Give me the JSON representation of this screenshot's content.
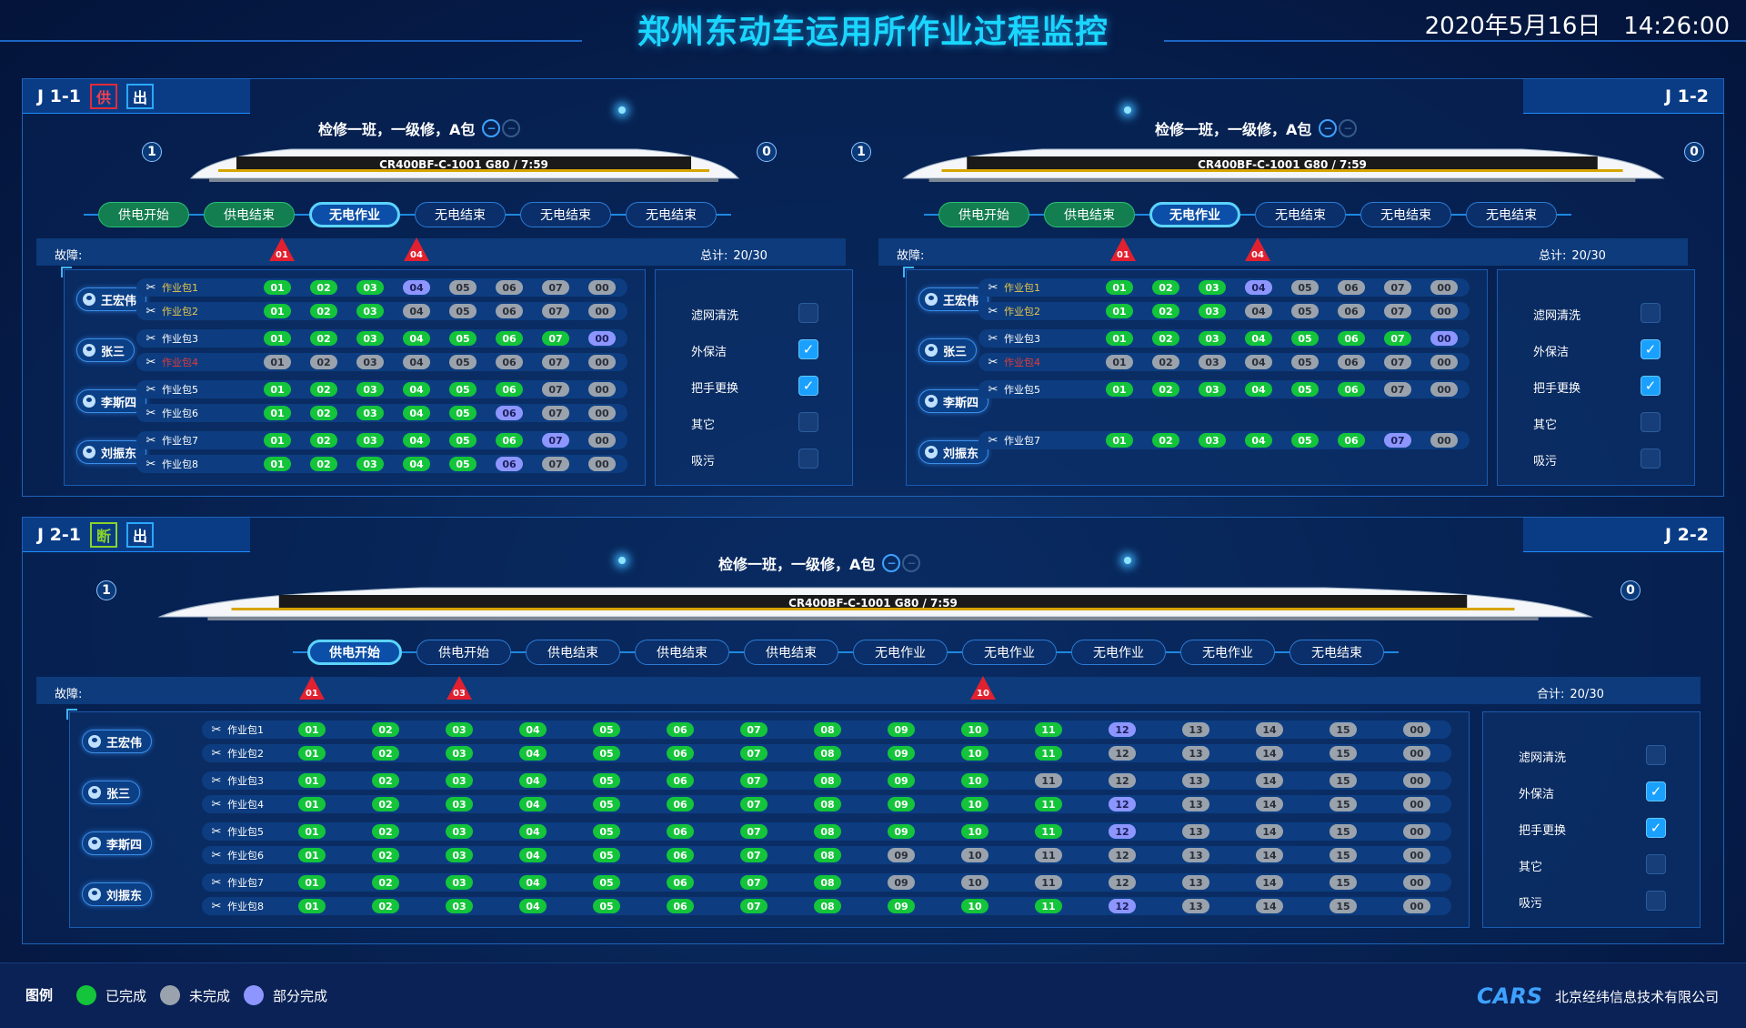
{
  "header": {
    "title": "郑州东动车运用所作业过程监控",
    "datetime": "2020年5月16日   14:26:00"
  },
  "legend": {
    "title": "图例",
    "done": "已完成",
    "undone": "未完成",
    "partial": "部分完成",
    "colors": {
      "done": "#14c43a",
      "undone": "#9aa3ad",
      "partial": "#8d96ff"
    }
  },
  "company": {
    "logo": "CARS",
    "name": "北京经纬信息技术有限公司"
  },
  "panels": {
    "j11": {
      "label": "J 1-1",
      "badge1": "供",
      "badge2": "出"
    },
    "j12": {
      "label": "J 1-2"
    },
    "j21": {
      "label": "J 2-1",
      "badge1": "断",
      "badge2": "出"
    },
    "j22": {
      "label": "J 2-2"
    }
  },
  "sections": [
    {
      "id": "s1",
      "subtitle": "检修一班，一级修，A包",
      "num_left": "1",
      "num_right": "0",
      "train_text": "CR400BF-C-1001  G80 / 7:59",
      "stages": [
        {
          "label": "供电开始",
          "state": "done"
        },
        {
          "label": "供电结束",
          "state": "done"
        },
        {
          "label": "无电作业",
          "state": "current"
        },
        {
          "label": "无电结束",
          "state": "todo"
        },
        {
          "label": "无电结束",
          "state": "todo"
        },
        {
          "label": "无电结束",
          "state": "todo"
        }
      ],
      "fault_label": "故障:",
      "faults": [
        "01",
        "04"
      ],
      "total_label": "总计:",
      "total": "20/30",
      "workers": [
        "王宏伟",
        "张三",
        "李斯四",
        "刘振东"
      ],
      "packages": [
        {
          "name": "作业包1",
          "style": "warn",
          "steps": [
            "01",
            "02",
            "03",
            "04",
            "05",
            "06",
            "07",
            "00"
          ],
          "states": [
            "g",
            "g",
            "g",
            "p",
            "n",
            "n",
            "n",
            "n"
          ]
        },
        {
          "name": "作业包2",
          "style": "warn",
          "steps": [
            "01",
            "02",
            "03",
            "04",
            "05",
            "06",
            "07",
            "00"
          ],
          "states": [
            "g",
            "g",
            "g",
            "n",
            "n",
            "n",
            "n",
            "n"
          ]
        },
        {
          "name": "作业包3",
          "style": "normal",
          "steps": [
            "01",
            "02",
            "03",
            "04",
            "05",
            "06",
            "07",
            "00"
          ],
          "states": [
            "g",
            "g",
            "g",
            "g",
            "g",
            "g",
            "g",
            "p"
          ]
        },
        {
          "name": "作业包4",
          "style": "err",
          "steps": [
            "01",
            "02",
            "03",
            "04",
            "05",
            "06",
            "07",
            "00"
          ],
          "states": [
            "n",
            "n",
            "n",
            "n",
            "n",
            "n",
            "n",
            "n"
          ]
        },
        {
          "name": "作业包5",
          "style": "normal",
          "steps": [
            "01",
            "02",
            "03",
            "04",
            "05",
            "06",
            "07",
            "00"
          ],
          "states": [
            "g",
            "g",
            "g",
            "g",
            "g",
            "g",
            "n",
            "n"
          ]
        },
        {
          "name": "作业包6",
          "style": "normal",
          "steps": [
            "01",
            "02",
            "03",
            "04",
            "05",
            "06",
            "07",
            "00"
          ],
          "states": [
            "g",
            "g",
            "g",
            "g",
            "g",
            "p",
            "n",
            "n"
          ]
        },
        {
          "name": "作业包7",
          "style": "normal",
          "steps": [
            "01",
            "02",
            "03",
            "04",
            "05",
            "06",
            "07",
            "00"
          ],
          "states": [
            "g",
            "g",
            "g",
            "g",
            "g",
            "g",
            "p",
            "n"
          ]
        },
        {
          "name": "作业包8",
          "style": "normal",
          "steps": [
            "01",
            "02",
            "03",
            "04",
            "05",
            "06",
            "07",
            "00"
          ],
          "states": [
            "g",
            "g",
            "g",
            "g",
            "g",
            "p",
            "n",
            "n"
          ]
        }
      ],
      "checks": [
        {
          "label": "滤网清洗",
          "checked": false
        },
        {
          "label": "外保洁",
          "checked": true
        },
        {
          "label": "把手更换",
          "checked": true
        },
        {
          "label": "其它",
          "checked": false
        },
        {
          "label": "吸污",
          "checked": false
        }
      ]
    },
    {
      "id": "s2",
      "subtitle": "检修一班，一级修，A包",
      "num_left": "1",
      "num_right": "0",
      "train_text": "CR400BF-C-1001  G80 / 7:59",
      "stages": [
        {
          "label": "供电开始",
          "state": "done"
        },
        {
          "label": "供电结束",
          "state": "done"
        },
        {
          "label": "无电作业",
          "state": "current"
        },
        {
          "label": "无电结束",
          "state": "todo"
        },
        {
          "label": "无电结束",
          "state": "todo"
        },
        {
          "label": "无电结束",
          "state": "todo"
        }
      ],
      "fault_label": "故障:",
      "faults": [
        "01",
        "04"
      ],
      "total_label": "总计:",
      "total": "20/30",
      "workers": [
        "王宏伟",
        "张三",
        "李斯四",
        "刘振东"
      ],
      "packages": [
        {
          "name": "作业包1",
          "style": "warn",
          "steps": [
            "01",
            "02",
            "03",
            "04",
            "05",
            "06",
            "07",
            "00"
          ],
          "states": [
            "g",
            "g",
            "g",
            "p",
            "n",
            "n",
            "n",
            "n"
          ]
        },
        {
          "name": "作业包2",
          "style": "warn",
          "steps": [
            "01",
            "02",
            "03",
            "04",
            "05",
            "06",
            "07",
            "00"
          ],
          "states": [
            "g",
            "g",
            "g",
            "n",
            "n",
            "n",
            "n",
            "n"
          ]
        },
        {
          "name": "作业包3",
          "style": "normal",
          "steps": [
            "01",
            "02",
            "03",
            "04",
            "05",
            "06",
            "07",
            "00"
          ],
          "states": [
            "g",
            "g",
            "g",
            "g",
            "g",
            "g",
            "g",
            "p"
          ]
        },
        {
          "name": "作业包4",
          "style": "err",
          "steps": [
            "01",
            "02",
            "03",
            "04",
            "05",
            "06",
            "07",
            "00"
          ],
          "states": [
            "n",
            "n",
            "n",
            "n",
            "n",
            "n",
            "n",
            "n"
          ]
        },
        {
          "name": "作业包5",
          "style": "normal",
          "steps": [
            "01",
            "02",
            "03",
            "04",
            "05",
            "06",
            "07",
            "00"
          ],
          "states": [
            "g",
            "g",
            "g",
            "g",
            "g",
            "g",
            "n",
            "n"
          ]
        },
        {
          "name": "作业包7",
          "style": "normal",
          "steps": [
            "01",
            "02",
            "03",
            "04",
            "05",
            "06",
            "07",
            "00"
          ],
          "states": [
            "g",
            "g",
            "g",
            "g",
            "g",
            "g",
            "p",
            "n"
          ]
        }
      ],
      "checks": [
        {
          "label": "滤网清洗",
          "checked": false
        },
        {
          "label": "外保洁",
          "checked": true
        },
        {
          "label": "把手更换",
          "checked": true
        },
        {
          "label": "其它",
          "checked": false
        },
        {
          "label": "吸污",
          "checked": false
        }
      ]
    },
    {
      "id": "s3",
      "subtitle": "检修一班，一级修，A包",
      "num_left": "1",
      "num_right": "0",
      "train_text": "CR400BF-C-1001  G80 / 7:59",
      "stages": [
        {
          "label": "供电开始",
          "state": "current"
        },
        {
          "label": "供电开始",
          "state": "todo"
        },
        {
          "label": "供电结束",
          "state": "todo"
        },
        {
          "label": "供电结束",
          "state": "todo"
        },
        {
          "label": "供电结束",
          "state": "todo"
        },
        {
          "label": "无电作业",
          "state": "todo"
        },
        {
          "label": "无电作业",
          "state": "todo"
        },
        {
          "label": "无电作业",
          "state": "todo"
        },
        {
          "label": "无电作业",
          "state": "todo"
        },
        {
          "label": "无电结束",
          "state": "todo"
        }
      ],
      "fault_label": "故障:",
      "faults": [
        "01",
        "03",
        "10"
      ],
      "total_label": "合计:",
      "total": "20/30",
      "workers": [
        "王宏伟",
        "张三",
        "李斯四",
        "刘振东"
      ],
      "packages": [
        {
          "name": "作业包1",
          "style": "normal",
          "steps": [
            "01",
            "02",
            "03",
            "04",
            "05",
            "06",
            "07",
            "08",
            "09",
            "10",
            "11",
            "12",
            "13",
            "14",
            "15",
            "00"
          ],
          "states": [
            "g",
            "g",
            "g",
            "g",
            "g",
            "g",
            "g",
            "g",
            "g",
            "g",
            "g",
            "p",
            "n",
            "n",
            "n",
            "n"
          ]
        },
        {
          "name": "作业包2",
          "style": "normal",
          "steps": [
            "01",
            "02",
            "03",
            "04",
            "05",
            "06",
            "07",
            "08",
            "09",
            "10",
            "11",
            "12",
            "13",
            "14",
            "15",
            "00"
          ],
          "states": [
            "g",
            "g",
            "g",
            "g",
            "g",
            "g",
            "g",
            "g",
            "g",
            "g",
            "g",
            "n",
            "n",
            "n",
            "n",
            "n"
          ]
        },
        {
          "name": "作业包3",
          "style": "normal",
          "steps": [
            "01",
            "02",
            "03",
            "04",
            "05",
            "06",
            "07",
            "08",
            "09",
            "10",
            "11",
            "12",
            "13",
            "14",
            "15",
            "00"
          ],
          "states": [
            "g",
            "g",
            "g",
            "g",
            "g",
            "g",
            "g",
            "g",
            "g",
            "g",
            "n",
            "n",
            "n",
            "n",
            "n",
            "n"
          ]
        },
        {
          "name": "作业包4",
          "style": "normal",
          "steps": [
            "01",
            "02",
            "03",
            "04",
            "05",
            "06",
            "07",
            "08",
            "09",
            "10",
            "11",
            "12",
            "13",
            "14",
            "15",
            "00"
          ],
          "states": [
            "g",
            "g",
            "g",
            "g",
            "g",
            "g",
            "g",
            "g",
            "g",
            "g",
            "g",
            "p",
            "n",
            "n",
            "n",
            "n"
          ]
        },
        {
          "name": "作业包5",
          "style": "normal",
          "steps": [
            "01",
            "02",
            "03",
            "04",
            "05",
            "06",
            "07",
            "08",
            "09",
            "10",
            "11",
            "12",
            "13",
            "14",
            "15",
            "00"
          ],
          "states": [
            "g",
            "g",
            "g",
            "g",
            "g",
            "g",
            "g",
            "g",
            "g",
            "g",
            "g",
            "p",
            "n",
            "n",
            "n",
            "n"
          ]
        },
        {
          "name": "作业包6",
          "style": "normal",
          "steps": [
            "01",
            "02",
            "03",
            "04",
            "05",
            "06",
            "07",
            "08",
            "09",
            "10",
            "11",
            "12",
            "13",
            "14",
            "15",
            "00"
          ],
          "states": [
            "g",
            "g",
            "g",
            "g",
            "g",
            "g",
            "g",
            "g",
            "n",
            "n",
            "n",
            "n",
            "n",
            "n",
            "n",
            "n"
          ]
        },
        {
          "name": "作业包7",
          "style": "normal",
          "steps": [
            "01",
            "02",
            "03",
            "04",
            "05",
            "06",
            "07",
            "08",
            "09",
            "10",
            "11",
            "12",
            "13",
            "14",
            "15",
            "00"
          ],
          "states": [
            "g",
            "g",
            "g",
            "g",
            "g",
            "g",
            "g",
            "g",
            "n",
            "n",
            "n",
            "n",
            "n",
            "n",
            "n",
            "n"
          ]
        },
        {
          "name": "作业包8",
          "style": "normal",
          "steps": [
            "01",
            "02",
            "03",
            "04",
            "05",
            "06",
            "07",
            "08",
            "09",
            "10",
            "11",
            "12",
            "13",
            "14",
            "15",
            "00"
          ],
          "states": [
            "g",
            "g",
            "g",
            "g",
            "g",
            "g",
            "g",
            "g",
            "g",
            "g",
            "g",
            "p",
            "n",
            "n",
            "n",
            "n"
          ]
        }
      ],
      "checks": [
        {
          "label": "滤网清洗",
          "checked": false
        },
        {
          "label": "外保洁",
          "checked": true
        },
        {
          "label": "把手更换",
          "checked": true
        },
        {
          "label": "其它",
          "checked": false
        },
        {
          "label": "吸污",
          "checked": false
        }
      ]
    }
  ]
}
